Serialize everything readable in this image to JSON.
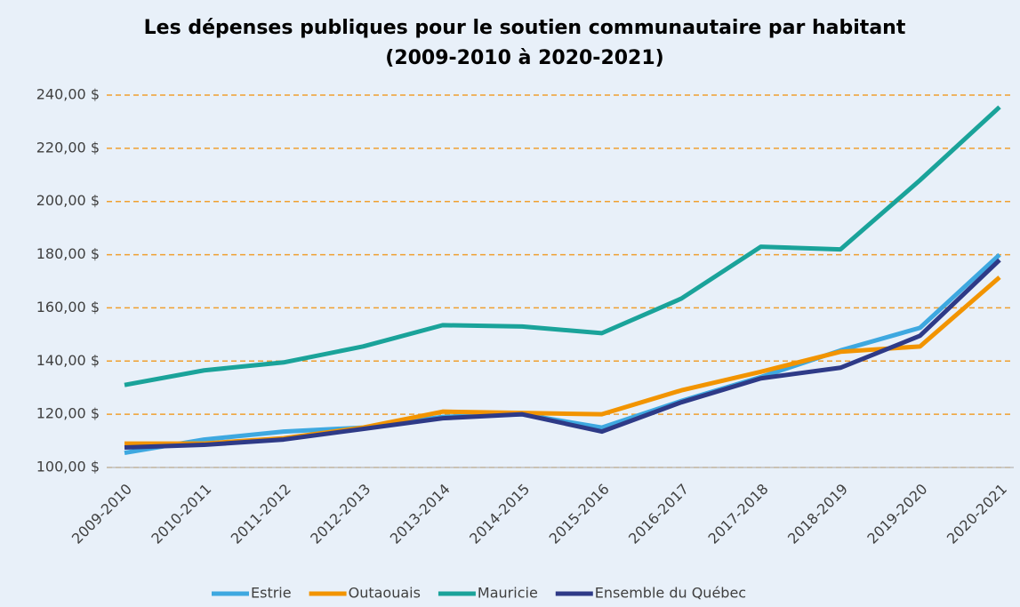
{
  "chart_data": {
    "type": "line",
    "title": [
      "Les dépenses publiques pour le soutien communautaire par habitant",
      "(2009-2010 à 2020-2021)"
    ],
    "categories": [
      "2009-2010",
      "2010-2011",
      "2011-2012",
      "2012-2013",
      "2013-2014",
      "2014-2015",
      "2015-2016",
      "2016-2017",
      "2017-2018",
      "2018-2019",
      "2019-2020",
      "2020-2021"
    ],
    "series": [
      {
        "name": "Estrie",
        "color": "#3ea8e0",
        "values": [
          105.5,
          110.5,
          113.5,
          115,
          119,
          120,
          115,
          125,
          134,
          144,
          152.5,
          180
        ]
      },
      {
        "name": "Outaouais",
        "color": "#f29400",
        "values": [
          109,
          109,
          111,
          115,
          121,
          120.5,
          120,
          129,
          136,
          143.5,
          145.5,
          171.5
        ]
      },
      {
        "name": "Mauricie",
        "color": "#1aa39a",
        "values": [
          131,
          136.5,
          139.5,
          145.5,
          153.5,
          153,
          150.5,
          163.5,
          183,
          182,
          208,
          235.5
        ]
      },
      {
        "name": "Ensemble du Québec",
        "color": "#2e3a87",
        "values": [
          107.5,
          108.5,
          110.5,
          114.5,
          118.5,
          120,
          113.5,
          124.5,
          133.5,
          137.5,
          149.5,
          178
        ]
      }
    ],
    "ylim": [
      100,
      240
    ],
    "yticks": [
      {
        "value": 100,
        "label": "100,00 $"
      },
      {
        "value": 120,
        "label": "120,00 $"
      },
      {
        "value": 140,
        "label": "140,00 $"
      },
      {
        "value": 160,
        "label": "160,00 $"
      },
      {
        "value": 180,
        "label": "180,00 $"
      },
      {
        "value": 200,
        "label": "200,00 $"
      },
      {
        "value": 220,
        "label": "220,00 $"
      },
      {
        "value": 240,
        "label": "240,00 $"
      }
    ],
    "grid": true,
    "grid_color": "#f0a030",
    "legend": "bottom"
  }
}
